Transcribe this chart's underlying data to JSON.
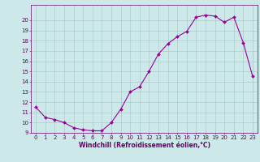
{
  "x": [
    0,
    1,
    2,
    3,
    4,
    5,
    6,
    7,
    8,
    9,
    10,
    11,
    12,
    13,
    14,
    15,
    16,
    17,
    18,
    19,
    20,
    21,
    22,
    23
  ],
  "y": [
    11.5,
    10.5,
    10.3,
    10.0,
    9.5,
    9.3,
    9.2,
    9.2,
    10.0,
    11.3,
    13.0,
    13.5,
    15.0,
    16.7,
    17.7,
    18.4,
    18.9,
    20.3,
    20.5,
    20.4,
    19.8,
    20.3,
    17.8,
    14.5
  ],
  "line_color": "#990099",
  "marker": "D",
  "marker_size": 2,
  "bg_color": "#cce8e8",
  "grid_color": "#aacccc",
  "xlabel": "Windchill (Refroidissement éolien,°C)",
  "xlabel_color": "#660066",
  "tick_color": "#660066",
  "ylim": [
    9,
    21
  ],
  "xlim": [
    -0.5,
    23.5
  ],
  "yticks": [
    9,
    10,
    11,
    12,
    13,
    14,
    15,
    16,
    17,
    18,
    19,
    20
  ],
  "xticks": [
    0,
    1,
    2,
    3,
    4,
    5,
    6,
    7,
    8,
    9,
    10,
    11,
    12,
    13,
    14,
    15,
    16,
    17,
    18,
    19,
    20,
    21,
    22,
    23
  ],
  "axis_fontsize": 5.0,
  "label_fontsize": 5.5
}
